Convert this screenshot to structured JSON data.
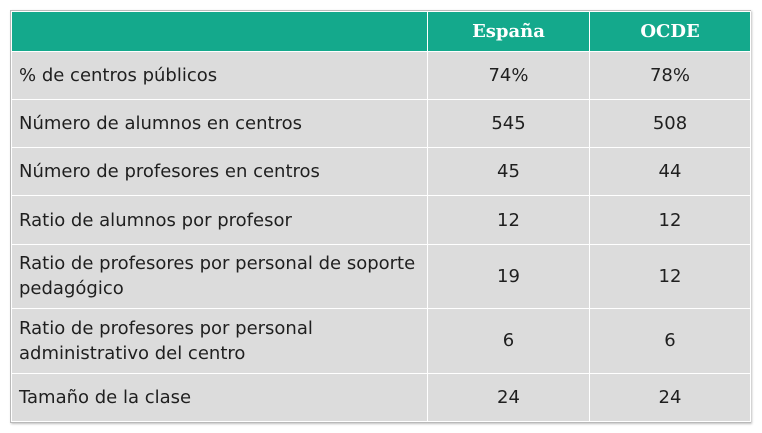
{
  "table": {
    "header": {
      "blank": "",
      "col1": "España",
      "col2": "OCDE"
    },
    "rows": [
      {
        "label": "% de centros públicos",
        "espana": "74%",
        "ocde": "78%"
      },
      {
        "label": "Número de alumnos en centros",
        "espana": "545",
        "ocde": "508"
      },
      {
        "label": "Número de profesores en centros",
        "espana": "45",
        "ocde": "44"
      },
      {
        "label": "Ratio de alumnos por profesor",
        "espana": "12",
        "ocde": "12"
      },
      {
        "label": "Ratio de profesores por personal de soporte pedagógico",
        "espana": "19",
        "ocde": "12"
      },
      {
        "label": "Ratio de profesores por personal administrativo del centro",
        "espana": "6",
        "ocde": "6"
      },
      {
        "label": "Tamaño de la clase",
        "espana": "24",
        "ocde": "24"
      }
    ]
  },
  "colors": {
    "header_bg": "#14a98c",
    "header_text": "#ffffff",
    "row_bg": "#dcdcdc",
    "cell_border": "#ffffff"
  }
}
